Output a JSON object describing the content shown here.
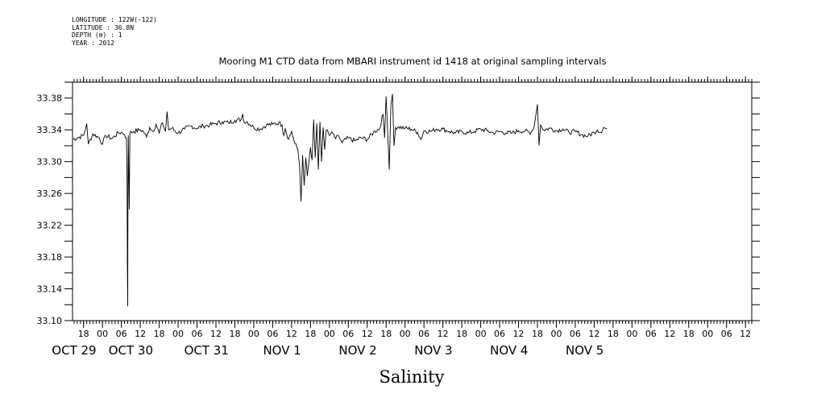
{
  "header": {
    "longitude": "LONGITUDE : 122W(-122)",
    "latitude": "LATITUDE : 36.8N",
    "depth": "DEPTH (m) : 1",
    "year": "YEAR : 2012"
  },
  "chart_data": {
    "type": "line",
    "title": "Mooring M1 CTD data from MBARI instrument id 1418 at original sampling intervals",
    "xlabel": "Salinity",
    "ylabel": "",
    "ylim": [
      33.1,
      33.4
    ],
    "yticks": [
      "33.10",
      "33.14",
      "33.18",
      "33.22",
      "33.26",
      "33.30",
      "33.34",
      "33.38"
    ],
    "xlim_hours": [
      -9.5,
      206
    ],
    "hour_ticks": [
      {
        "h": -6,
        "label": "18"
      },
      {
        "h": 0,
        "label": "00"
      },
      {
        "h": 6,
        "label": "06"
      },
      {
        "h": 12,
        "label": "12"
      },
      {
        "h": 18,
        "label": "18"
      },
      {
        "h": 24,
        "label": "00"
      },
      {
        "h": 30,
        "label": "06"
      },
      {
        "h": 36,
        "label": "12"
      },
      {
        "h": 42,
        "label": "18"
      },
      {
        "h": 48,
        "label": "00"
      },
      {
        "h": 54,
        "label": "06"
      },
      {
        "h": 60,
        "label": "12"
      },
      {
        "h": 66,
        "label": "18"
      },
      {
        "h": 72,
        "label": "00"
      },
      {
        "h": 78,
        "label": "06"
      },
      {
        "h": 84,
        "label": "12"
      },
      {
        "h": 90,
        "label": "18"
      },
      {
        "h": 96,
        "label": "00"
      },
      {
        "h": 102,
        "label": "06"
      },
      {
        "h": 108,
        "label": "12"
      },
      {
        "h": 114,
        "label": "18"
      },
      {
        "h": 120,
        "label": "00"
      },
      {
        "h": 126,
        "label": "06"
      },
      {
        "h": 132,
        "label": "12"
      },
      {
        "h": 138,
        "label": "18"
      },
      {
        "h": 144,
        "label": "00"
      },
      {
        "h": 150,
        "label": "06"
      },
      {
        "h": 156,
        "label": "12"
      },
      {
        "h": 162,
        "label": "18"
      },
      {
        "h": 168,
        "label": "00"
      },
      {
        "h": 174,
        "label": "06"
      },
      {
        "h": 180,
        "label": "12"
      },
      {
        "h": 186,
        "label": "18"
      },
      {
        "h": 192,
        "label": "00"
      },
      {
        "h": 198,
        "label": "06"
      },
      {
        "h": 204,
        "label": "12"
      }
    ],
    "day_labels": [
      {
        "h": -9,
        "label": "OCT 29"
      },
      {
        "h": 9,
        "label": "OCT 30"
      },
      {
        "h": 33,
        "label": "OCT 31"
      },
      {
        "h": 57,
        "label": "NOV  1"
      },
      {
        "h": 81,
        "label": "NOV  2"
      },
      {
        "h": 105,
        "label": "NOV  3"
      },
      {
        "h": 129,
        "label": "NOV  4"
      },
      {
        "h": 153,
        "label": "NOV  5"
      }
    ],
    "series": [
      {
        "values": [
          [
            -9.5,
            33.328
          ],
          [
            -8,
            33.33
          ],
          [
            -6,
            33.333
          ],
          [
            -5,
            33.348
          ],
          [
            -4.5,
            33.322
          ],
          [
            -3,
            33.335
          ],
          [
            -1,
            33.33
          ],
          [
            0,
            33.322
          ],
          [
            1,
            33.333
          ],
          [
            3,
            33.329
          ],
          [
            5,
            33.336
          ],
          [
            6,
            33.337
          ],
          [
            7,
            33.334
          ],
          [
            7.6,
            33.33
          ],
          [
            7.8,
            33.278
          ],
          [
            7.9,
            33.17
          ],
          [
            8.0,
            33.118
          ],
          [
            8.1,
            33.25
          ],
          [
            8.2,
            33.333
          ],
          [
            8.5,
            33.24
          ],
          [
            8.7,
            33.336
          ],
          [
            10,
            33.338
          ],
          [
            12,
            33.34
          ],
          [
            13,
            33.338
          ],
          [
            14,
            33.331
          ],
          [
            15,
            33.343
          ],
          [
            16,
            33.338
          ],
          [
            17,
            33.347
          ],
          [
            18,
            33.336
          ],
          [
            19,
            33.349
          ],
          [
            20,
            33.338
          ],
          [
            20.5,
            33.363
          ],
          [
            21,
            33.34
          ],
          [
            22,
            33.342
          ],
          [
            24,
            33.336
          ],
          [
            26,
            33.341
          ],
          [
            28,
            33.345
          ],
          [
            30,
            33.342
          ],
          [
            32,
            33.345
          ],
          [
            34,
            33.346
          ],
          [
            36,
            33.348
          ],
          [
            38,
            33.35
          ],
          [
            40,
            33.349
          ],
          [
            42,
            33.352
          ],
          [
            44,
            33.353
          ],
          [
            44.5,
            33.36
          ],
          [
            45,
            33.349
          ],
          [
            46,
            33.35
          ],
          [
            48,
            33.343
          ],
          [
            50,
            33.341
          ],
          [
            52,
            33.346
          ],
          [
            54,
            33.347
          ],
          [
            56,
            33.349
          ],
          [
            57,
            33.346
          ],
          [
            57.5,
            33.333
          ],
          [
            58,
            33.342
          ],
          [
            59,
            33.328
          ],
          [
            60,
            33.338
          ],
          [
            61,
            33.323
          ],
          [
            62,
            33.315
          ],
          [
            62.5,
            33.296
          ],
          [
            63,
            33.25
          ],
          [
            63.5,
            33.308
          ],
          [
            64,
            33.27
          ],
          [
            64.5,
            33.305
          ],
          [
            65,
            33.282
          ],
          [
            66,
            33.318
          ],
          [
            66.5,
            33.302
          ],
          [
            67,
            33.353
          ],
          [
            67.5,
            33.305
          ],
          [
            68,
            33.348
          ],
          [
            68.5,
            33.29
          ],
          [
            69,
            33.35
          ],
          [
            69.5,
            33.3
          ],
          [
            70,
            33.343
          ],
          [
            70.5,
            33.315
          ],
          [
            71,
            33.34
          ],
          [
            72,
            33.333
          ],
          [
            73,
            33.336
          ],
          [
            74,
            33.329
          ],
          [
            75,
            33.332
          ],
          [
            76,
            33.324
          ],
          [
            78,
            33.33
          ],
          [
            80,
            33.326
          ],
          [
            82,
            33.33
          ],
          [
            84,
            33.328
          ],
          [
            86,
            33.337
          ],
          [
            88,
            33.342
          ],
          [
            89,
            33.36
          ],
          [
            89.5,
            33.33
          ],
          [
            90,
            33.382
          ],
          [
            90.5,
            33.335
          ],
          [
            91,
            33.29
          ],
          [
            91.5,
            33.37
          ],
          [
            92,
            33.385
          ],
          [
            92.5,
            33.32
          ],
          [
            93,
            33.343
          ],
          [
            94,
            33.344
          ],
          [
            96,
            33.342
          ],
          [
            98,
            33.341
          ],
          [
            100,
            33.337
          ],
          [
            101,
            33.328
          ],
          [
            102,
            33.339
          ],
          [
            104,
            33.338
          ],
          [
            106,
            33.341
          ],
          [
            108,
            33.341
          ],
          [
            110,
            33.338
          ],
          [
            112,
            33.336
          ],
          [
            114,
            33.338
          ],
          [
            116,
            33.336
          ],
          [
            118,
            33.338
          ],
          [
            120,
            33.341
          ],
          [
            122,
            33.339
          ],
          [
            124,
            33.336
          ],
          [
            126,
            33.338
          ],
          [
            128,
            33.336
          ],
          [
            130,
            33.336
          ],
          [
            132,
            33.339
          ],
          [
            134,
            33.338
          ],
          [
            136,
            33.337
          ],
          [
            137,
            33.345
          ],
          [
            138,
            33.372
          ],
          [
            138.5,
            33.32
          ],
          [
            139,
            33.346
          ],
          [
            140,
            33.34
          ],
          [
            142,
            33.342
          ],
          [
            144,
            33.339
          ],
          [
            146,
            33.341
          ],
          [
            148,
            33.337
          ],
          [
            150,
            33.338
          ],
          [
            152,
            33.334
          ],
          [
            154,
            33.332
          ],
          [
            156,
            33.337
          ],
          [
            157,
            33.34
          ],
          [
            158,
            33.337
          ],
          [
            159,
            33.343
          ],
          [
            160,
            33.341
          ]
        ]
      }
    ]
  }
}
